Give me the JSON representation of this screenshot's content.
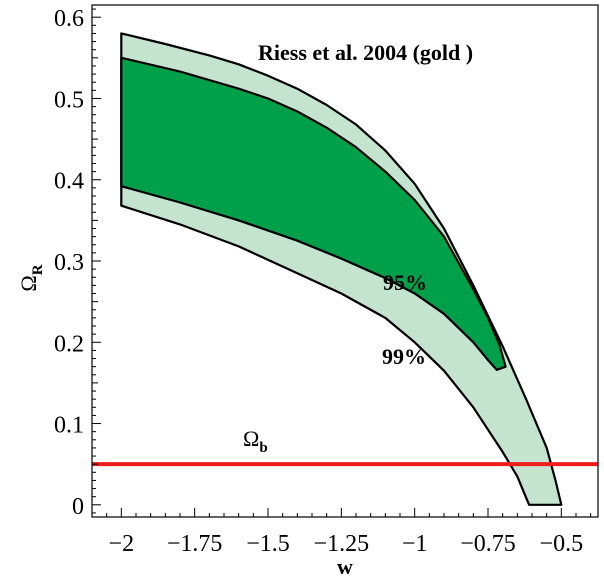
{
  "chart_data": {
    "type": "area",
    "title": "",
    "xlabel": "w",
    "ylabel": "Ω",
    "ylabel_sub": "R",
    "xlim": [
      -2.1,
      -0.375
    ],
    "ylim": [
      -0.015,
      0.615
    ],
    "xticks": [
      -2,
      -1.75,
      -1.5,
      -1.25,
      -1,
      -0.75,
      -0.5
    ],
    "xtick_labels": [
      "−2",
      "−1.75",
      "−1.5",
      "−1.25",
      "−1",
      "−0.75",
      "−0.5"
    ],
    "yticks": [
      0,
      0.1,
      0.2,
      0.3,
      0.4,
      0.5,
      0.6
    ],
    "ytick_labels": [
      "0",
      "0.1",
      "0.2",
      "0.3",
      "0.4",
      "0.5",
      "0.6"
    ],
    "grid": false,
    "annotations": {
      "source": "Riess   et al. 2004  (gold )",
      "label_95": "95%",
      "label_99": "99%",
      "omega_b_symbol": "Ω",
      "omega_b_sub": "b"
    },
    "colors": {
      "region_99": "#c5e4cf",
      "region_95": "#00a04a",
      "omega_b_line": "#ee1c1c"
    },
    "series": [
      {
        "key": "region_99",
        "upper": [
          [
            -2.0,
            0.58
          ],
          [
            -1.85,
            0.567
          ],
          [
            -1.7,
            0.553
          ],
          [
            -1.6,
            0.542
          ],
          [
            -1.5,
            0.528
          ],
          [
            -1.4,
            0.512
          ],
          [
            -1.3,
            0.492
          ],
          [
            -1.2,
            0.468
          ],
          [
            -1.1,
            0.436
          ],
          [
            -1.0,
            0.395
          ],
          [
            -0.9,
            0.34
          ],
          [
            -0.8,
            0.27
          ],
          [
            -0.7,
            0.195
          ],
          [
            -0.62,
            0.13
          ],
          [
            -0.55,
            0.07
          ],
          [
            -0.52,
            0.03
          ],
          [
            -0.5,
            0.0
          ]
        ],
        "lower": [
          [
            -2.0,
            0.368
          ],
          [
            -1.8,
            0.345
          ],
          [
            -1.6,
            0.318
          ],
          [
            -1.4,
            0.285
          ],
          [
            -1.25,
            0.26
          ],
          [
            -1.1,
            0.23
          ],
          [
            -1.0,
            0.2
          ],
          [
            -0.9,
            0.165
          ],
          [
            -0.8,
            0.12
          ],
          [
            -0.7,
            0.065
          ],
          [
            -0.65,
            0.035
          ],
          [
            -0.61,
            0.0
          ]
        ]
      },
      {
        "key": "region_95",
        "upper": [
          [
            -2.0,
            0.55
          ],
          [
            -1.8,
            0.533
          ],
          [
            -1.6,
            0.512
          ],
          [
            -1.5,
            0.5
          ],
          [
            -1.4,
            0.484
          ],
          [
            -1.3,
            0.464
          ],
          [
            -1.2,
            0.44
          ],
          [
            -1.1,
            0.41
          ],
          [
            -1.0,
            0.375
          ],
          [
            -0.9,
            0.33
          ],
          [
            -0.8,
            0.265
          ],
          [
            -0.75,
            0.23
          ],
          [
            -0.71,
            0.196
          ],
          [
            -0.69,
            0.17
          ]
        ],
        "lower": [
          [
            -2.0,
            0.392
          ],
          [
            -1.8,
            0.372
          ],
          [
            -1.6,
            0.35
          ],
          [
            -1.4,
            0.325
          ],
          [
            -1.25,
            0.303
          ],
          [
            -1.1,
            0.279
          ],
          [
            -1.0,
            0.26
          ],
          [
            -0.9,
            0.235
          ],
          [
            -0.8,
            0.2
          ],
          [
            -0.75,
            0.178
          ],
          [
            -0.72,
            0.166
          ],
          [
            -0.69,
            0.17
          ]
        ]
      },
      {
        "key": "omega_b_line",
        "points": [
          [
            -2.1,
            0.05
          ],
          [
            -0.375,
            0.05
          ]
        ]
      }
    ]
  }
}
